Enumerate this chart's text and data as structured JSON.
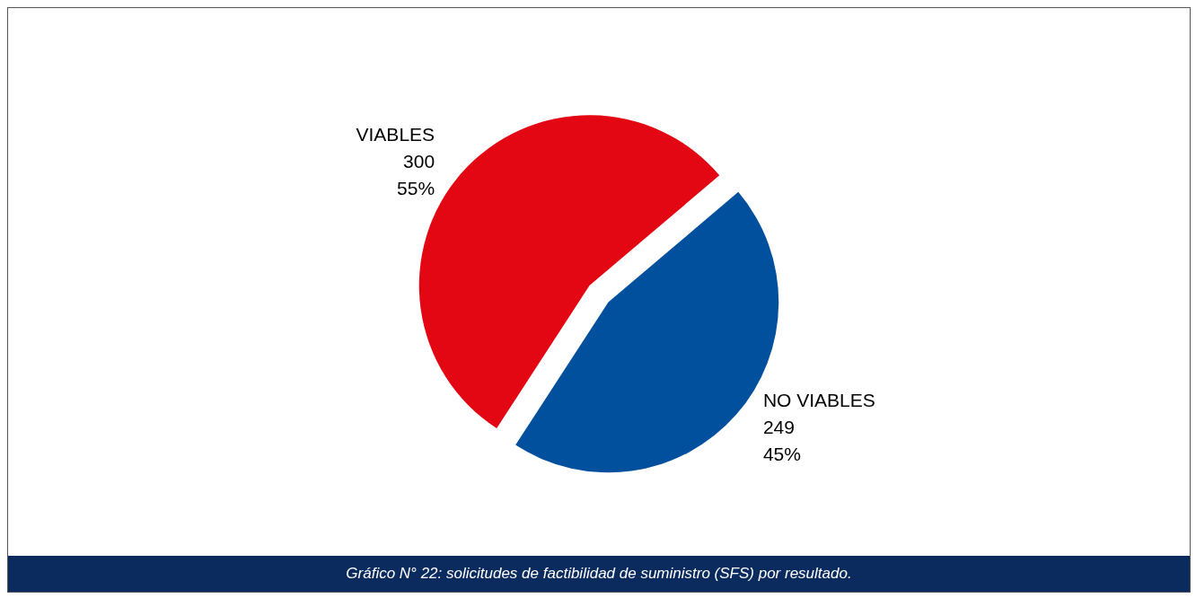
{
  "chart_data": {
    "type": "pie",
    "categories": [
      "VIABLES",
      "NO VIABLES"
    ],
    "values": [
      300,
      249
    ],
    "colors": [
      "#e30613",
      "#00509e"
    ],
    "value_labels": [
      "300\n55%",
      "249\n45%"
    ],
    "legend": false,
    "annotations": [
      "Gráfico N° 22: solicitudes de factibilidad de suministro (SFS) por resultado."
    ]
  }
}
